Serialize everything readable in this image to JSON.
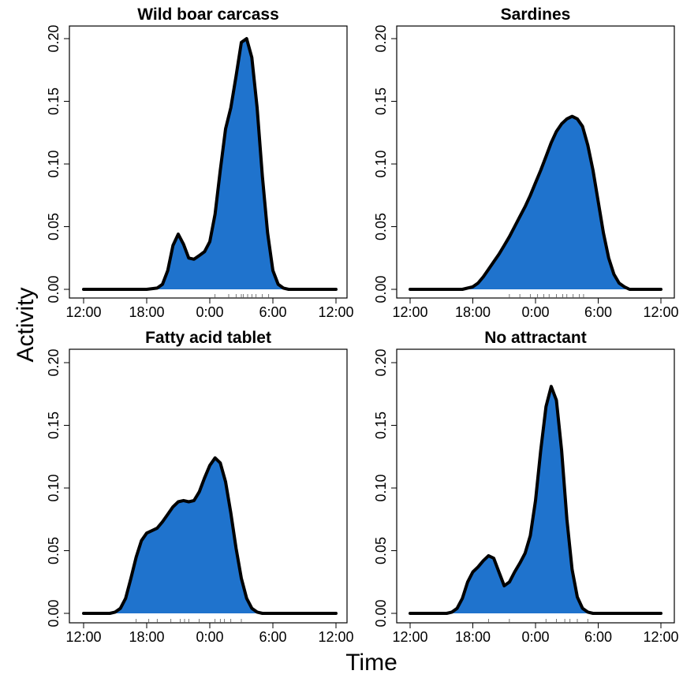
{
  "figure": {
    "xlabel": "Time",
    "ylabel": "Activity"
  },
  "style": {
    "fill_color": "#1f73cd",
    "line_color": "#000000"
  },
  "chart_data": [
    {
      "type": "area",
      "title": "Wild boar carcass",
      "xlabel": "",
      "ylabel": "",
      "x_unit": "hours from 12:00",
      "xlim": [
        0,
        24
      ],
      "ylim": [
        0,
        0.2
      ],
      "xticks": [
        "12:00",
        "18:00",
        "0:00",
        "6:00",
        "12:00"
      ],
      "yticks": [
        "0.00",
        "0.05",
        "0.10",
        "0.15",
        "0.20"
      ],
      "series": [
        {
          "x": [
            0,
            6,
            7,
            7.5,
            8,
            8.5,
            9,
            9.5,
            10,
            10.5,
            11,
            11.5,
            12,
            12.5,
            13,
            13.5,
            14,
            14.5,
            15,
            15.5,
            16,
            16.5,
            17,
            17.5,
            18,
            18.5,
            19,
            19.5,
            20,
            24
          ],
          "y": [
            0,
            0,
            0.001,
            0.004,
            0.015,
            0.035,
            0.044,
            0.036,
            0.025,
            0.024,
            0.027,
            0.03,
            0.038,
            0.06,
            0.095,
            0.128,
            0.145,
            0.17,
            0.197,
            0.2,
            0.185,
            0.145,
            0.09,
            0.045,
            0.015,
            0.004,
            0.001,
            0,
            0,
            0
          ]
        }
      ],
      "rug": [
        12.5,
        13.8,
        14.5,
        15.0,
        15.2,
        15.6,
        16.0,
        16.4,
        17.0,
        17.6
      ]
    },
    {
      "type": "area",
      "title": "Sardines",
      "xlabel": "",
      "ylabel": "",
      "x_unit": "hours from 12:00",
      "xlim": [
        0,
        24
      ],
      "ylim": [
        0,
        0.2
      ],
      "xticks": [
        "12:00",
        "18:00",
        "0:00",
        "6:00",
        "12:00"
      ],
      "yticks": [
        "0.00",
        "0.05",
        "0.10",
        "0.15",
        "0.20"
      ],
      "series": [
        {
          "x": [
            0,
            5,
            6,
            6.5,
            7,
            7.5,
            8,
            8.5,
            9,
            9.5,
            10,
            10.5,
            11,
            11.5,
            12,
            12.5,
            13,
            13.5,
            14,
            14.5,
            15,
            15.5,
            16,
            16.5,
            17,
            17.5,
            18,
            18.5,
            19,
            19.5,
            20,
            20.5,
            21,
            24
          ],
          "y": [
            0,
            0,
            0.002,
            0.005,
            0.01,
            0.016,
            0.022,
            0.028,
            0.035,
            0.042,
            0.05,
            0.058,
            0.066,
            0.075,
            0.085,
            0.095,
            0.106,
            0.117,
            0.126,
            0.132,
            0.136,
            0.138,
            0.136,
            0.13,
            0.115,
            0.095,
            0.07,
            0.045,
            0.025,
            0.012,
            0.005,
            0.002,
            0,
            0
          ]
        }
      ],
      "rug": [
        9.5,
        10.5,
        11.5,
        12.2,
        12.8,
        13.3,
        14.0,
        14.6,
        15.0,
        15.6,
        16.2,
        16.6
      ]
    },
    {
      "type": "area",
      "title": "Fatty acid tablet",
      "xlabel": "",
      "ylabel": "",
      "x_unit": "hours from 12:00",
      "xlim": [
        0,
        24
      ],
      "ylim": [
        0,
        0.2
      ],
      "xticks": [
        "12:00",
        "18:00",
        "0:00",
        "6:00",
        "12:00"
      ],
      "yticks": [
        "0.00",
        "0.05",
        "0.10",
        "0.15",
        "0.20"
      ],
      "series": [
        {
          "x": [
            0,
            2.5,
            3,
            3.5,
            4,
            4.5,
            5,
            5.5,
            6,
            6.5,
            7,
            7.5,
            8,
            8.5,
            9,
            9.5,
            10,
            10.5,
            11,
            11.5,
            12,
            12.5,
            13,
            13.5,
            14,
            14.5,
            15,
            15.5,
            16,
            16.5,
            17,
            17.5,
            18,
            18.5,
            24
          ],
          "y": [
            0,
            0,
            0.001,
            0.004,
            0.012,
            0.028,
            0.045,
            0.058,
            0.064,
            0.066,
            0.068,
            0.073,
            0.079,
            0.085,
            0.089,
            0.09,
            0.089,
            0.09,
            0.097,
            0.108,
            0.118,
            0.124,
            0.12,
            0.105,
            0.08,
            0.052,
            0.028,
            0.012,
            0.004,
            0.001,
            0,
            0,
            0,
            0,
            0
          ]
        }
      ],
      "rug": [
        5.0,
        6.2,
        7.0,
        8.3,
        9.2,
        9.6,
        10.0,
        11.0,
        12.5,
        13.0,
        13.4,
        14.0,
        15.0
      ]
    },
    {
      "type": "area",
      "title": "No attractant",
      "xlabel": "",
      "ylabel": "",
      "x_unit": "hours from 12:00",
      "xlim": [
        0,
        24
      ],
      "ylim": [
        0,
        0.2
      ],
      "xticks": [
        "12:00",
        "18:00",
        "0:00",
        "6:00",
        "12:00"
      ],
      "yticks": [
        "0.00",
        "0.05",
        "0.10",
        "0.15",
        "0.20"
      ],
      "series": [
        {
          "x": [
            0,
            3.5,
            4,
            4.5,
            5,
            5.5,
            6,
            6.5,
            7,
            7.5,
            8,
            8.5,
            9,
            9.5,
            10,
            10.5,
            11,
            11.5,
            12,
            12.5,
            13,
            13.5,
            14,
            14.5,
            15,
            15.5,
            16,
            16.5,
            17,
            17.5,
            18,
            18.5,
            24
          ],
          "y": [
            0,
            0,
            0.001,
            0.004,
            0.012,
            0.025,
            0.033,
            0.037,
            0.042,
            0.046,
            0.044,
            0.033,
            0.022,
            0.025,
            0.033,
            0.04,
            0.048,
            0.062,
            0.09,
            0.13,
            0.165,
            0.181,
            0.17,
            0.13,
            0.075,
            0.035,
            0.013,
            0.004,
            0.001,
            0,
            0,
            0,
            0
          ]
        }
      ],
      "rug": [
        7.5,
        9.5,
        13.0,
        14.0,
        14.8,
        15.3,
        16.0,
        17.0
      ]
    }
  ]
}
